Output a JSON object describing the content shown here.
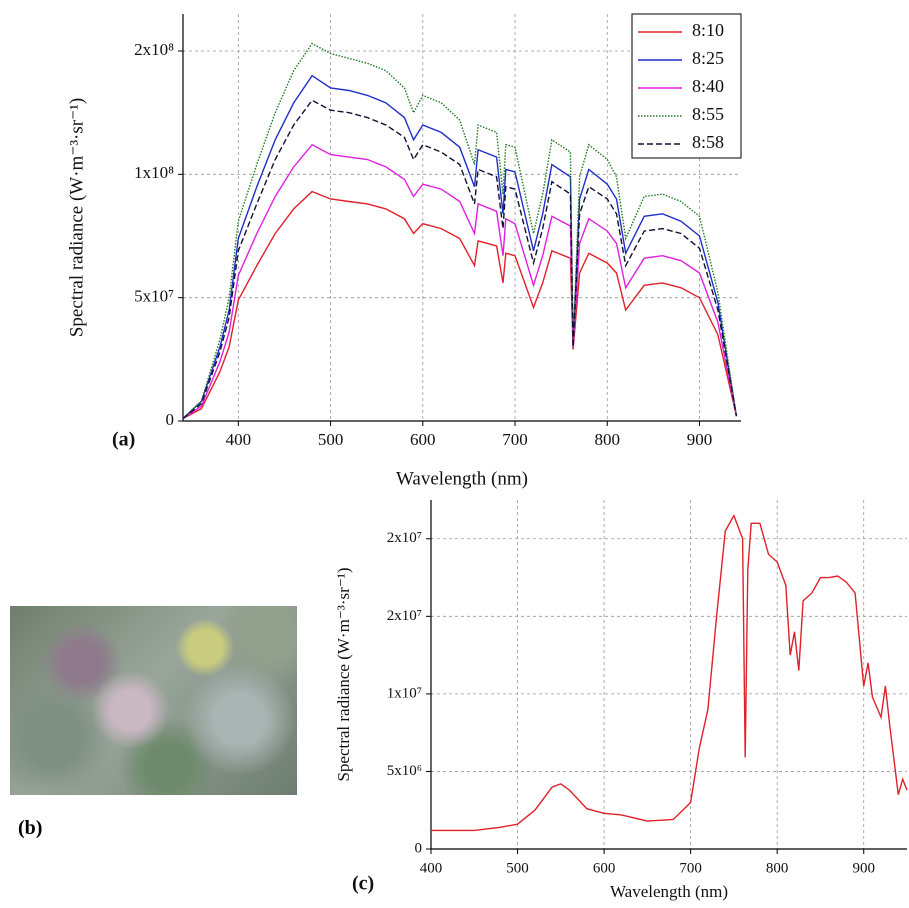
{
  "chart_data": [
    {
      "type": "line",
      "label": "(a)",
      "xlabel": "Wavelength (nm)",
      "ylabel": "Spectral radiance (W·m⁻³·sr⁻¹)",
      "x": [
        340,
        360,
        380,
        390,
        400,
        420,
        440,
        460,
        480,
        500,
        520,
        540,
        560,
        580,
        590,
        600,
        620,
        640,
        656,
        660,
        680,
        687,
        690,
        700,
        720,
        730,
        740,
        760,
        763,
        770,
        780,
        800,
        810,
        820,
        840,
        860,
        880,
        900,
        920,
        940
      ],
      "series": [
        {
          "name": "8:10",
          "color": "#e0202a",
          "line_style": "solid",
          "values": [
            1000000.0,
            5000000.0,
            20000000.0,
            30000000.0,
            49000000.0,
            63000000.0,
            76000000.0,
            86000000.0,
            93000000.0,
            90000000.0,
            89000000.0,
            88000000.0,
            86000000.0,
            82000000.0,
            76000000.0,
            80000000.0,
            78000000.0,
            74000000.0,
            63000000.0,
            73000000.0,
            71000000.0,
            56000000.0,
            68000000.0,
            67000000.0,
            46000000.0,
            56000000.0,
            69000000.0,
            66000000.0,
            29000000.0,
            60000000.0,
            68000000.0,
            64000000.0,
            60000000.0,
            45000000.0,
            55000000.0,
            56000000.0,
            54000000.0,
            50000000.0,
            35000000.0,
            2000000.0
          ]
        },
        {
          "name": "8:25",
          "color": "#1f2fc8",
          "line_style": "solid",
          "values": [
            1000000.0,
            8000000.0,
            30000000.0,
            45000000.0,
            74000000.0,
            95000000.0,
            114000000.0,
            129000000.0,
            140000000.0,
            135000000.0,
            134000000.0,
            132000000.0,
            129000000.0,
            123000000.0,
            114000000.0,
            120000000.0,
            117000000.0,
            111000000.0,
            95000000.0,
            110000000.0,
            107000000.0,
            84000000.0,
            102000000.0,
            101000000.0,
            69000000.0,
            84000000.0,
            104000000.0,
            99000000.0,
            30000000.0,
            90000000.0,
            102000000.0,
            96000000.0,
            90000000.0,
            68000000.0,
            83000000.0,
            84000000.0,
            81000000.0,
            75000000.0,
            48000000.0,
            2000000.0
          ]
        },
        {
          "name": "8:40",
          "color": "#e020e0",
          "line_style": "solid",
          "values": [
            1000000.0,
            6000000.0,
            24000000.0,
            36000000.0,
            59000000.0,
            76000000.0,
            91000000.0,
            103000000.0,
            112000000.0,
            108000000.0,
            107000000.0,
            106000000.0,
            103000000.0,
            98000000.0,
            91000000.0,
            96000000.0,
            94000000.0,
            89000000.0,
            76000000.0,
            88000000.0,
            85000000.0,
            67000000.0,
            82000000.0,
            80000000.0,
            55000000.0,
            67000000.0,
            83000000.0,
            79000000.0,
            30000000.0,
            72000000.0,
            82000000.0,
            77000000.0,
            72000000.0,
            54000000.0,
            66000000.0,
            67000000.0,
            65000000.0,
            60000000.0,
            40000000.0,
            2000000.0
          ]
        },
        {
          "name": "8:55",
          "color": "#1e7a1e",
          "line_style": "dotted",
          "values": [
            1000000.0,
            8000000.0,
            33000000.0,
            50000000.0,
            81000000.0,
            104000000.0,
            125000000.0,
            142000000.0,
            153000000.0,
            149000000.0,
            147000000.0,
            145000000.0,
            142000000.0,
            135000000.0,
            125000000.0,
            132000000.0,
            129000000.0,
            122000000.0,
            104000000.0,
            120000000.0,
            117000000.0,
            92000000.0,
            112000000.0,
            111000000.0,
            76000000.0,
            92000000.0,
            114000000.0,
            109000000.0,
            31000000.0,
            99000000.0,
            112000000.0,
            106000000.0,
            99000000.0,
            74000000.0,
            91000000.0,
            92000000.0,
            89000000.0,
            83000000.0,
            52000000.0,
            2000000.0
          ]
        },
        {
          "name": "8:58",
          "color": "#111133",
          "line_style": "dashed",
          "values": [
            1000000.0,
            7000000.0,
            28000000.0,
            42000000.0,
            69000000.0,
            88000000.0,
            106000000.0,
            120000000.0,
            130000000.0,
            126000000.0,
            125000000.0,
            123000000.0,
            120000000.0,
            115000000.0,
            106000000.0,
            112000000.0,
            109000000.0,
            104000000.0,
            88000000.0,
            102000000.0,
            99000000.0,
            78000000.0,
            95000000.0,
            94000000.0,
            64000000.0,
            78000000.0,
            97000000.0,
            92000000.0,
            30000000.0,
            84000000.0,
            95000000.0,
            90000000.0,
            84000000.0,
            63000000.0,
            77000000.0,
            78000000.0,
            76000000.0,
            70000000.0,
            45000000.0,
            2000000.0
          ]
        }
      ],
      "xlim": [
        340,
        945
      ],
      "ylim": [
        0,
        165000000
      ],
      "xticks": [
        400,
        500,
        600,
        700,
        800,
        900
      ],
      "yticks": [
        0,
        {
          "value": 50000000,
          "label": "5x10⁷"
        },
        {
          "value": 100000000,
          "label": "1x10⁸"
        },
        {
          "value": 150000000,
          "label": "2x10⁸"
        }
      ],
      "grid": true,
      "legend": "upper right"
    },
    {
      "type": "line",
      "label": "(c)",
      "xlabel": "Wavelength (nm)",
      "ylabel": "Spectral radiance (W·m⁻³·sr⁻¹)",
      "x": [
        400,
        450,
        480,
        500,
        520,
        540,
        550,
        560,
        580,
        600,
        620,
        650,
        680,
        700,
        710,
        720,
        730,
        740,
        750,
        760,
        763,
        766,
        770,
        780,
        790,
        800,
        810,
        815,
        820,
        825,
        830,
        840,
        850,
        860,
        870,
        880,
        890,
        900,
        905,
        910,
        920,
        925,
        930,
        940,
        945,
        950
      ],
      "series": [
        {
          "name": null,
          "color": "#e0202a",
          "line_style": "solid",
          "values": [
            1200000.0,
            1200000.0,
            1400000.0,
            1600000.0,
            2500000.0,
            4000000.0,
            4200000.0,
            3800000.0,
            2600000.0,
            2300000.0,
            2200000.0,
            1800000.0,
            1900000.0,
            3000000.0,
            6500000.0,
            9000000.0,
            15000000.0,
            20500000.0,
            21500000.0,
            20000000.0,
            5900000.0,
            18000000.0,
            21000000.0,
            21000000.0,
            19000000.0,
            18500000.0,
            17000000.0,
            12500000.0,
            14000000.0,
            11500000.0,
            16000000.0,
            16500000.0,
            17500000.0,
            17500000.0,
            17600000.0,
            17200000.0,
            16500000.0,
            10500000.0,
            12000000.0,
            9800000.0,
            8500000.0,
            10500000.0,
            8000000.0,
            3500000.0,
            4500000.0,
            3800000.0
          ]
        }
      ],
      "xlim": [
        400,
        950
      ],
      "ylim": [
        0,
        22500000
      ],
      "xticks": [
        400,
        500,
        600,
        700,
        800,
        900
      ],
      "yticks": [
        0,
        {
          "value": 5000000,
          "label": "5x10⁶"
        },
        {
          "value": 10000000,
          "label": "1x10⁷"
        },
        {
          "value": 15000000,
          "label": "2x10⁷"
        },
        {
          "value": 20000000,
          "label": "2x10⁷"
        }
      ],
      "grid": true,
      "legend": null
    }
  ],
  "photo_label": "(b)"
}
